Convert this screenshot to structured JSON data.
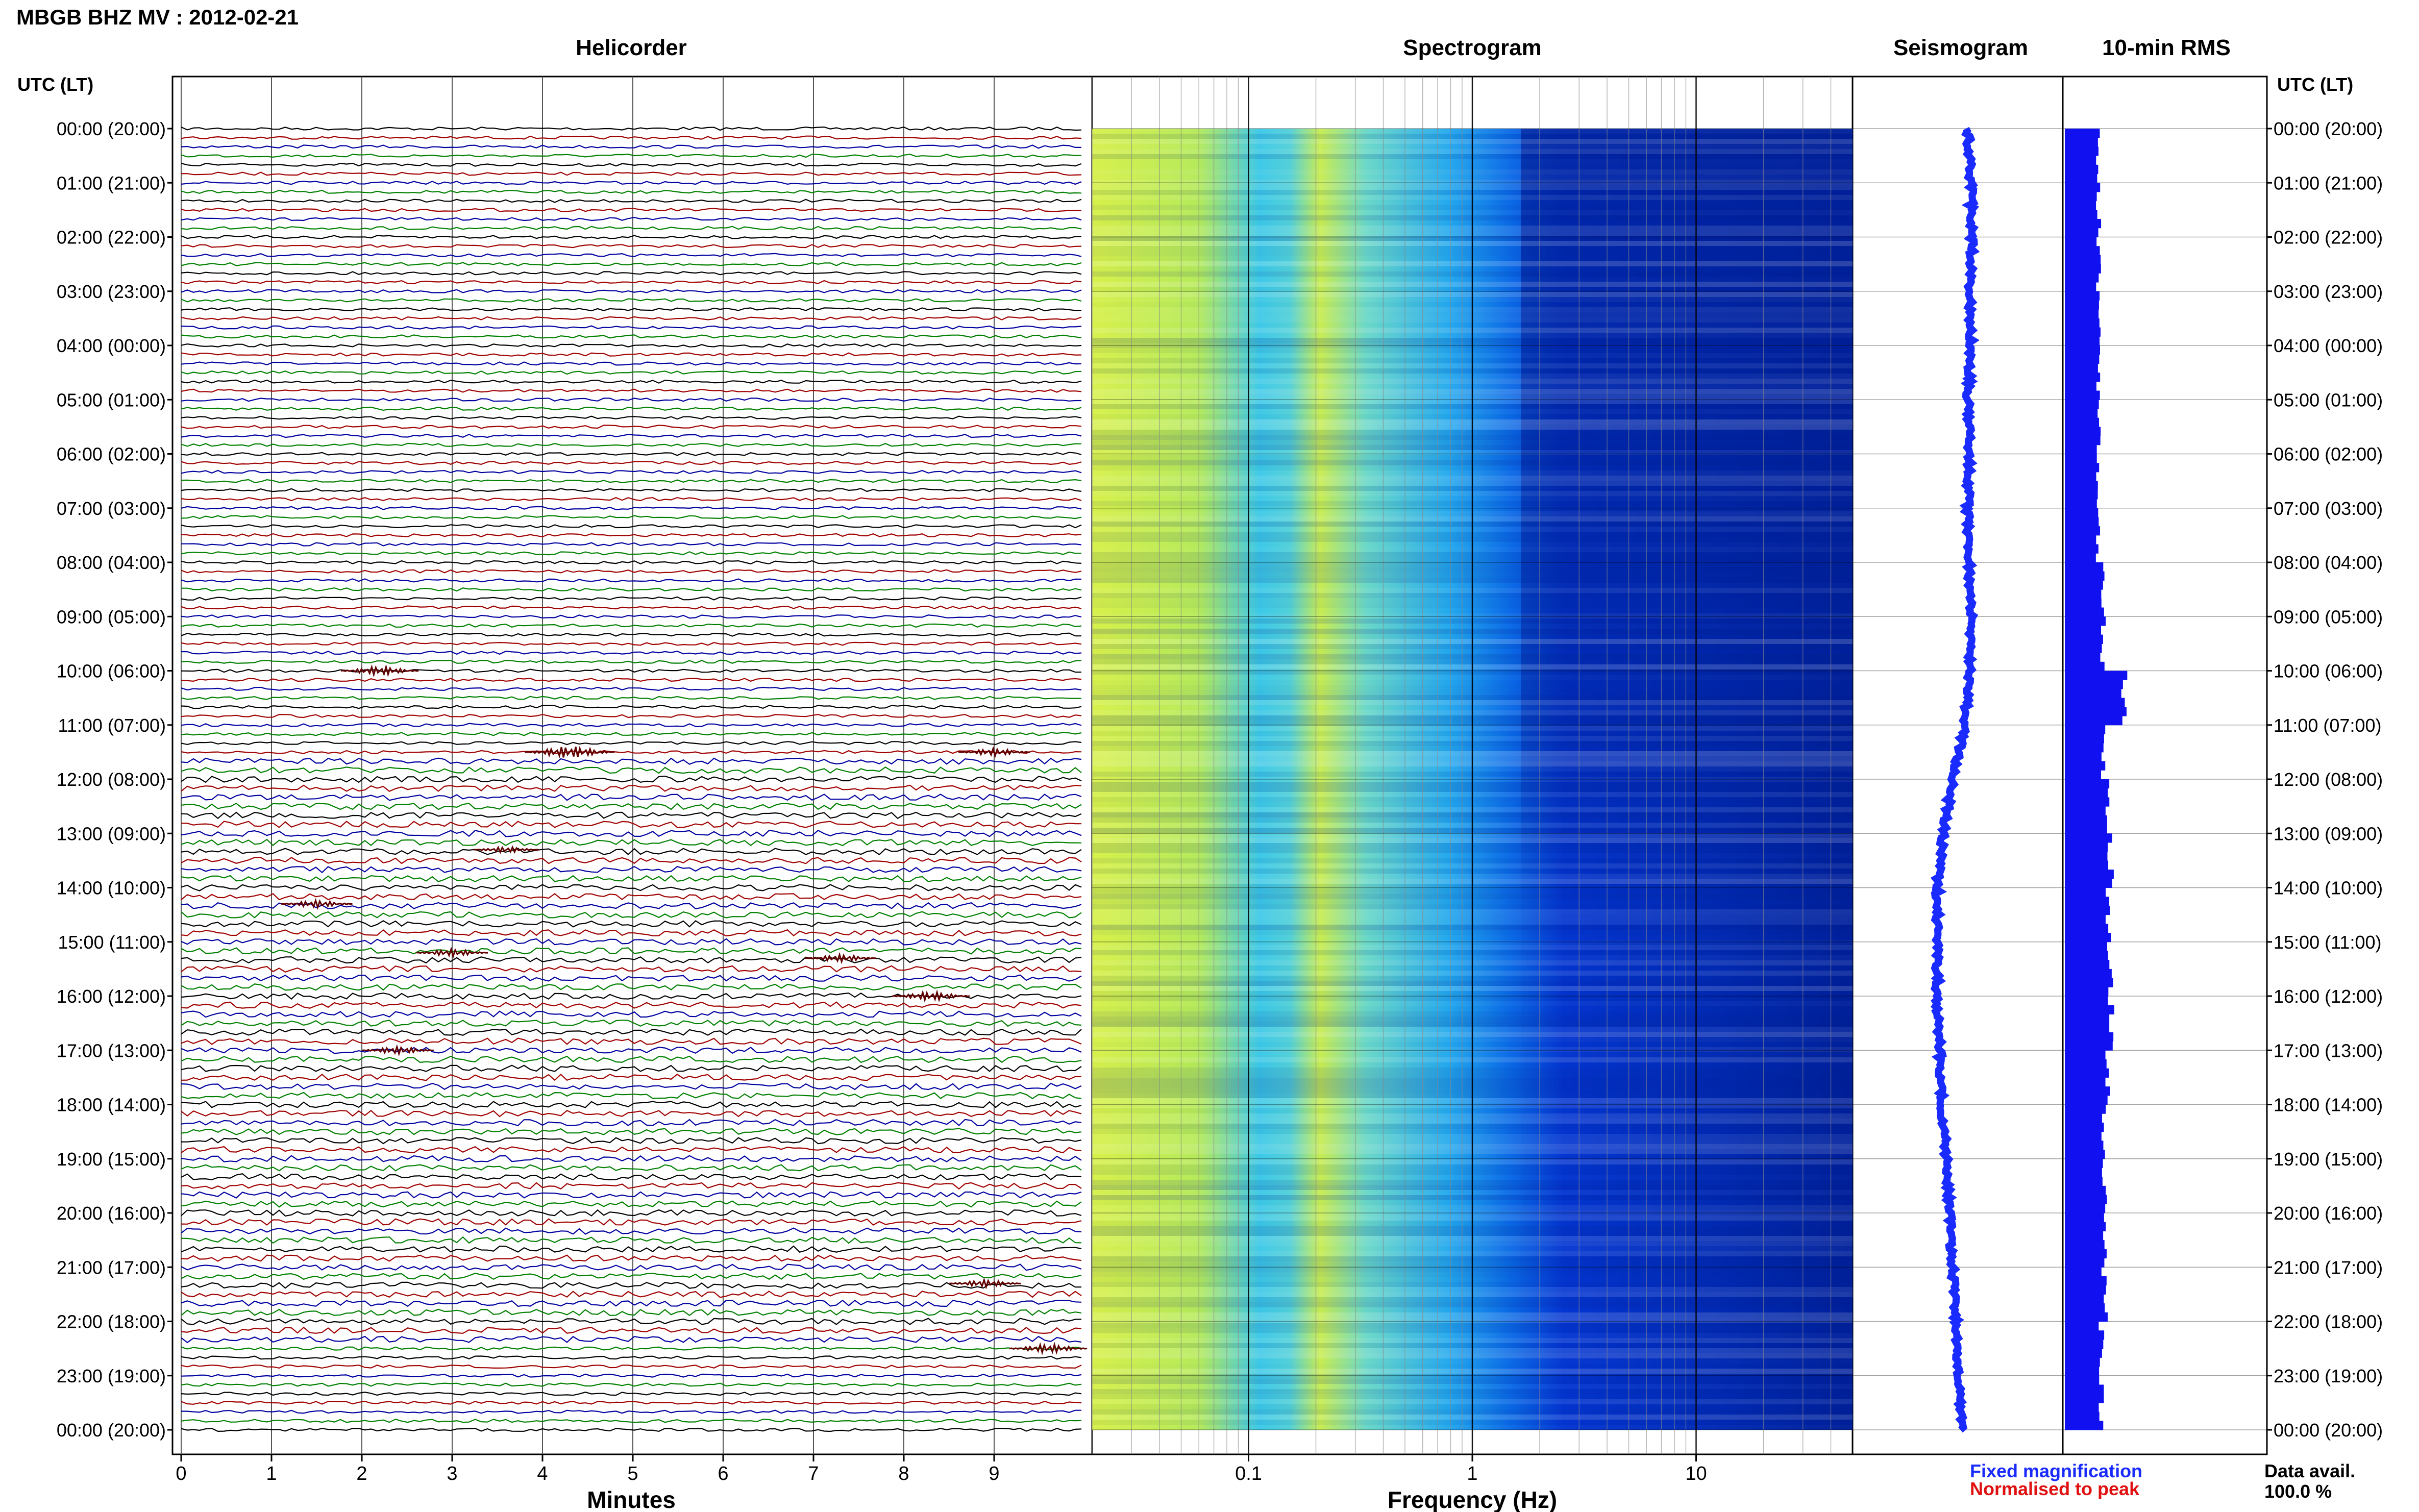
{
  "header": {
    "title": "MBGB BHZ MV : 2012-02-21",
    "utc_label_left": "UTC (LT)",
    "utc_label_right": "UTC (LT)"
  },
  "panels": {
    "helicorder": "Helicorder",
    "spectrogram": "Spectrogram",
    "seismogram": "Seismogram",
    "rms": "10-min RMS"
  },
  "axes": {
    "minutes_label": "Minutes",
    "frequency_label": "Frequency (Hz)",
    "minute_ticks": [
      "0",
      "1",
      "2",
      "3",
      "4",
      "5",
      "6",
      "7",
      "8",
      "9"
    ],
    "frequency_ticks": [
      "0.1",
      "1",
      "10"
    ]
  },
  "time_labels": [
    "00:00 (20:00)",
    "01:00 (21:00)",
    "02:00 (22:00)",
    "03:00 (23:00)",
    "04:00 (00:00)",
    "05:00 (01:00)",
    "06:00 (02:00)",
    "07:00 (03:00)",
    "08:00 (04:00)",
    "09:00 (05:00)",
    "10:00 (06:00)",
    "11:00 (07:00)",
    "12:00 (08:00)",
    "13:00 (09:00)",
    "14:00 (10:00)",
    "15:00 (11:00)",
    "16:00 (12:00)",
    "17:00 (13:00)",
    "18:00 (14:00)",
    "19:00 (15:00)",
    "20:00 (16:00)",
    "21:00 (17:00)",
    "22:00 (18:00)",
    "23:00 (19:00)",
    "00:00 (20:00)"
  ],
  "legend": {
    "fixed": "Fixed magnification",
    "normalised": "Normalised to peak",
    "data_avail_label": "Data avail.",
    "data_avail_value": "100.0 %"
  },
  "colors": {
    "fixed": "#1a2bff",
    "normalised": "#e01010",
    "trace_cycle": [
      "#000000",
      "#a00000",
      "#0000a0",
      "#008000"
    ],
    "rms_bar": "#1010f0"
  },
  "chart_data": {
    "type": "heatmap",
    "station": "MBGB BHZ MV",
    "date": "2012-02-21",
    "helicorder": {
      "lines": 144,
      "minutes_per_line": 10,
      "events": [
        {
          "hour": 10.0,
          "minute": 2.2,
          "size": 0.6
        },
        {
          "hour": 11.5,
          "minute": 4.3,
          "size": 0.8
        },
        {
          "hour": 11.5,
          "minute": 9.0,
          "size": 0.5
        },
        {
          "hour": 13.3,
          "minute": 3.6,
          "size": 0.4
        },
        {
          "hour": 14.3,
          "minute": 1.5,
          "size": 0.5
        },
        {
          "hour": 15.2,
          "minute": 3.0,
          "size": 0.5
        },
        {
          "hour": 15.3,
          "minute": 7.3,
          "size": 0.5
        },
        {
          "hour": 16.0,
          "minute": 8.3,
          "size": 0.6
        },
        {
          "hour": 17.0,
          "minute": 2.4,
          "size": 0.5
        },
        {
          "hour": 21.3,
          "minute": 8.9,
          "size": 0.5
        },
        {
          "hour": 22.5,
          "minute": 9.6,
          "size": 0.6
        }
      ]
    },
    "spectrogram": {
      "freq_min": 0.02,
      "freq_max": 50,
      "log_scale": true,
      "hour_range": [
        0,
        24
      ]
    },
    "seismogram": {
      "hours": [
        0,
        1,
        2,
        3,
        4,
        5,
        6,
        7,
        8,
        9,
        10,
        11,
        12,
        13,
        14,
        15,
        16,
        17,
        18,
        19,
        20,
        21,
        22,
        23,
        24
      ],
      "offset": [
        0.55,
        0.6,
        0.62,
        0.58,
        0.6,
        0.55,
        0.58,
        0.55,
        0.57,
        0.6,
        0.58,
        0.5,
        0.3,
        0.15,
        0.05,
        0.05,
        0.05,
        0.1,
        0.12,
        0.2,
        0.25,
        0.3,
        0.35,
        0.4,
        0.45
      ]
    },
    "rms": {
      "hours": [
        0,
        1,
        2,
        3,
        4,
        5,
        6,
        7,
        8,
        9,
        10,
        11,
        12,
        13,
        14,
        15,
        16,
        17,
        18,
        19,
        20,
        21,
        22,
        23
      ],
      "values": [
        0.55,
        0.55,
        0.55,
        0.55,
        0.55,
        0.55,
        0.55,
        0.55,
        0.6,
        0.62,
        0.95,
        0.62,
        0.7,
        0.75,
        0.7,
        0.75,
        0.75,
        0.7,
        0.65,
        0.65,
        0.65,
        0.65,
        0.6,
        0.6
      ]
    }
  }
}
